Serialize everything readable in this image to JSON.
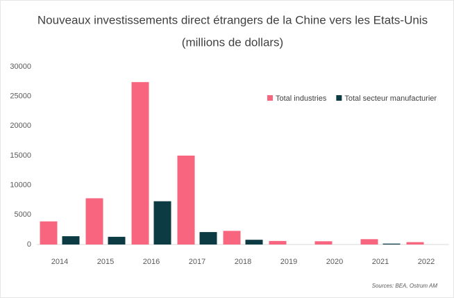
{
  "chart_data": {
    "type": "bar",
    "title": "Nouveaux investissements direct étrangers de la Chine vers les Etats-Unis",
    "subtitle": "(millions de dollars)",
    "source": "Sources: BEA, Ostrum AM",
    "categories": [
      "2014",
      "2015",
      "2016",
      "2017",
      "2018",
      "2019",
      "2020",
      "2021",
      "2022"
    ],
    "series": [
      {
        "name": "Total industries",
        "color": "#f7657f",
        "values": [
          3900,
          7800,
          27400,
          15000,
          2300,
          600,
          550,
          900,
          400
        ]
      },
      {
        "name": "Total secteur manufacturier",
        "color": "#0d3b44",
        "values": [
          1400,
          1300,
          7300,
          2100,
          800,
          0,
          0,
          150,
          0
        ]
      }
    ],
    "ylim": [
      0,
      30000
    ],
    "yticks": [
      0,
      5000,
      10000,
      15000,
      20000,
      25000,
      30000
    ],
    "grid": false,
    "legend": "top-right"
  }
}
